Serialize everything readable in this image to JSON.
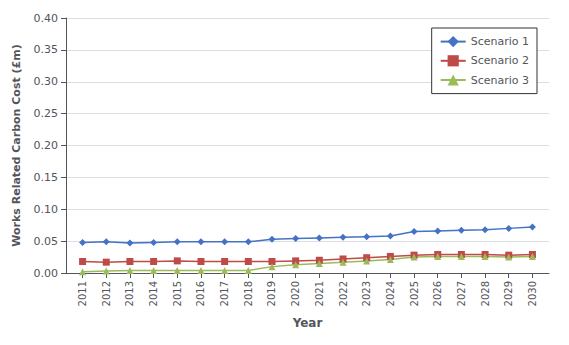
{
  "chart_data": {
    "type": "line",
    "x": [
      2011,
      2012,
      2013,
      2014,
      2015,
      2016,
      2017,
      2018,
      2019,
      2020,
      2021,
      2022,
      2023,
      2024,
      2025,
      2026,
      2027,
      2028,
      2029,
      2030
    ],
    "xlabel": "Year",
    "ylabel": "Works Related Carbon Cost (£m)",
    "xlim": [
      2010.3,
      2030.7
    ],
    "xticks": [
      2011,
      2012,
      2013,
      2014,
      2015,
      2016,
      2017,
      2018,
      2019,
      2020,
      2021,
      2022,
      2023,
      2024,
      2025,
      2026,
      2027,
      2028,
      2029,
      2030
    ],
    "ylim": [
      0.0,
      0.4
    ],
    "yticks": [
      {
        "value": 0.0,
        "label": "0.00"
      },
      {
        "value": 0.05,
        "label": "0.05"
      },
      {
        "value": 0.1,
        "label": "0.10"
      },
      {
        "value": 0.15,
        "label": "0.15"
      },
      {
        "value": 0.2,
        "label": "0.20"
      },
      {
        "value": 0.25,
        "label": "0.25"
      },
      {
        "value": 0.3,
        "label": "0.30"
      },
      {
        "value": 0.35,
        "label": "0.35"
      },
      {
        "value": 0.4,
        "label": "0.40"
      }
    ],
    "grid": true,
    "legend": "upper right",
    "series": [
      {
        "name": "Scenario 1",
        "color": "#4472C4",
        "marker": "diamond",
        "values": [
          0.048,
          0.049,
          0.047,
          0.048,
          0.049,
          0.049,
          0.049,
          0.049,
          0.053,
          0.054,
          0.055,
          0.056,
          0.057,
          0.058,
          0.065,
          0.066,
          0.067,
          0.068,
          0.07,
          0.072
        ]
      },
      {
        "name": "Scenario 2",
        "color": "#BE4B48",
        "marker": "square",
        "values": [
          0.018,
          0.017,
          0.018,
          0.018,
          0.019,
          0.018,
          0.018,
          0.018,
          0.018,
          0.019,
          0.02,
          0.022,
          0.024,
          0.026,
          0.028,
          0.029,
          0.029,
          0.029,
          0.028,
          0.029
        ]
      },
      {
        "name": "Scenario 3",
        "color": "#9BBB59",
        "marker": "triangle",
        "values": [
          0.002,
          0.003,
          0.004,
          0.004,
          0.004,
          0.004,
          0.004,
          0.004,
          0.01,
          0.013,
          0.015,
          0.017,
          0.019,
          0.021,
          0.025,
          0.026,
          0.026,
          0.026,
          0.025,
          0.026
        ]
      }
    ]
  }
}
